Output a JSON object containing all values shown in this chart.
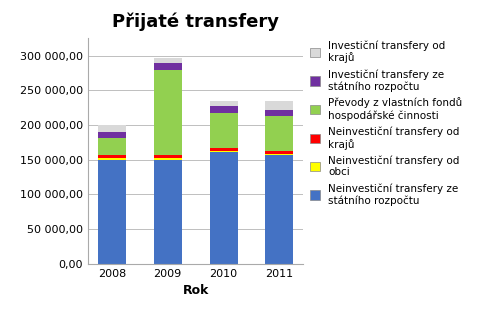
{
  "title": "Přijaté transfery",
  "xlabel": "Rok",
  "ylabel": "",
  "years": [
    2008,
    2009,
    2010,
    2011
  ],
  "series": [
    {
      "label": "Neinvestiční transfery ze\nstátního rozpočtu",
      "color": "#4472C4",
      "values": [
        150000,
        150000,
        161000,
        157000
      ]
    },
    {
      "label": "Neinvestiční transfery od\nobci",
      "color": "#FFFF00",
      "values": [
        2000,
        2000,
        1000,
        1000
      ]
    },
    {
      "label": "Neinvestiční transfery od\nkrajů",
      "color": "#FF0000",
      "values": [
        5000,
        5000,
        5000,
        5000
      ]
    },
    {
      "label": "Převody z vlastních fondů\nhospodářské činnosti",
      "color": "#92D050",
      "values": [
        25000,
        122000,
        50000,
        50000
      ]
    },
    {
      "label": "Investiční transfery ze\nstátního rozpočtu",
      "color": "#7030A0",
      "values": [
        8000,
        10000,
        10000,
        8000
      ]
    },
    {
      "label": "Investiční transfery od\nkrajů",
      "color": "#D9D9D9",
      "values": [
        10000,
        8000,
        8000,
        13000
      ]
    }
  ],
  "ylim": [
    0,
    325000
  ],
  "yticks": [
    0,
    50000,
    100000,
    150000,
    200000,
    250000,
    300000
  ],
  "ytick_labels": [
    "0,00",
    "50 000,00",
    "100 000,00",
    "150 000,00",
    "200 000,00",
    "250 000,00",
    "300 000,00"
  ],
  "background_color": "#FFFFFF",
  "plot_bg_color": "#FFFFFF",
  "grid_color": "#BEBEBE",
  "title_fontsize": 13,
  "label_fontsize": 9,
  "legend_fontsize": 7.5,
  "tick_fontsize": 8,
  "bar_width": 0.5
}
